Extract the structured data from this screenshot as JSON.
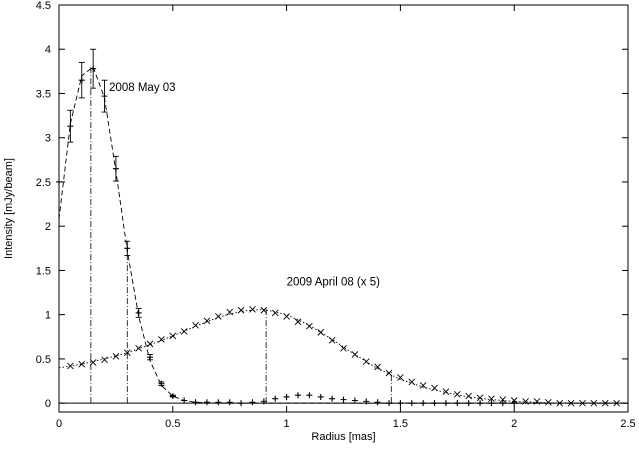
{
  "chart_data": {
    "type": "scatter",
    "xlabel": "Radius [mas]",
    "ylabel": "Intensity [mJy/beam]",
    "xlim": [
      0,
      2.5
    ],
    "ylim": [
      -0.1,
      4.5
    ],
    "xticks": [
      "0",
      "0.5",
      "1",
      "1.5",
      "2",
      "2.5"
    ],
    "yticks": [
      "0",
      "0.5",
      "1",
      "1.5",
      "2",
      "2.5",
      "3",
      "3.5",
      "4",
      "4.5"
    ],
    "grid": false,
    "annotations": [
      {
        "text": "2008 May 03",
        "x": 0.22,
        "y": 3.53
      },
      {
        "text": "2009 April 08 (x 5)",
        "x": 1.0,
        "y": 1.33
      }
    ],
    "series": [
      {
        "marker": "plus-errorbar",
        "x": [
          0.0,
          0.05,
          0.1,
          0.15,
          0.2,
          0.25,
          0.3,
          0.35,
          0.4,
          0.45,
          0.5,
          0.55,
          0.6,
          0.65,
          0.7,
          0.75,
          0.8,
          0.85,
          0.9,
          0.95,
          1.0,
          1.05,
          1.1,
          1.15,
          1.2,
          1.25,
          1.3,
          1.35,
          1.4,
          1.45,
          1.5,
          1.55,
          1.6,
          1.65,
          1.7,
          1.75,
          1.8,
          1.85,
          1.9,
          1.95,
          2.0
        ],
        "y": [
          2.5,
          3.13,
          3.65,
          3.78,
          3.47,
          2.65,
          1.75,
          1.02,
          0.52,
          0.22,
          0.08,
          0.03,
          0.01,
          0.01,
          0.01,
          0.01,
          0.0,
          0.01,
          0.02,
          0.05,
          0.07,
          0.09,
          0.09,
          0.07,
          0.05,
          0.04,
          0.03,
          0.02,
          0.01,
          0.0,
          0.0,
          0.0,
          0.0,
          0.0,
          0.0,
          0.0,
          0.0,
          0.0,
          0.0,
          0.0,
          0.0
        ],
        "err": [
          0.0,
          0.18,
          0.2,
          0.22,
          0.18,
          0.14,
          0.08,
          0.05,
          0.03,
          0.02,
          0.01,
          0.0,
          0.0,
          0.0,
          0.0,
          0.0,
          0.0,
          0.0,
          0.0,
          0.0,
          0.0,
          0.0,
          0.0,
          0.0,
          0.0,
          0.0,
          0.0,
          0.0,
          0.0,
          0.0,
          0.0,
          0.0,
          0.0,
          0.0,
          0.0,
          0.0,
          0.0,
          0.0,
          0.0,
          0.0,
          0.0
        ]
      },
      {
        "marker": "cross",
        "x": [
          0.05,
          0.1,
          0.15,
          0.2,
          0.25,
          0.3,
          0.35,
          0.4,
          0.45,
          0.5,
          0.55,
          0.6,
          0.65,
          0.7,
          0.75,
          0.8,
          0.85,
          0.9,
          0.95,
          1.0,
          1.05,
          1.1,
          1.15,
          1.2,
          1.25,
          1.3,
          1.35,
          1.4,
          1.45,
          1.5,
          1.55,
          1.6,
          1.65,
          1.7,
          1.75,
          1.8,
          1.85,
          1.9,
          1.95,
          2.0,
          2.05,
          2.1,
          2.15,
          2.2,
          2.25,
          2.3,
          2.35,
          2.4,
          2.45
        ],
        "y": [
          0.42,
          0.44,
          0.46,
          0.49,
          0.53,
          0.57,
          0.62,
          0.67,
          0.72,
          0.76,
          0.81,
          0.88,
          0.93,
          0.98,
          1.03,
          1.05,
          1.06,
          1.05,
          1.02,
          0.98,
          0.92,
          0.87,
          0.8,
          0.71,
          0.62,
          0.55,
          0.47,
          0.41,
          0.34,
          0.29,
          0.24,
          0.2,
          0.17,
          0.13,
          0.1,
          0.08,
          0.06,
          0.05,
          0.04,
          0.03,
          0.02,
          0.02,
          0.01,
          0.0,
          0.0,
          0.0,
          0.0,
          0.0,
          0.0
        ]
      }
    ],
    "fit_curves": [
      {
        "style": "dashed",
        "x": [
          0.0,
          0.05,
          0.1,
          0.15,
          0.2,
          0.25,
          0.3,
          0.35,
          0.4,
          0.45,
          0.5,
          0.55,
          0.6,
          0.7,
          0.8,
          1.0,
          1.2,
          1.5,
          2.0,
          2.5
        ],
        "y": [
          2.08,
          3.16,
          3.7,
          3.8,
          3.45,
          2.62,
          1.72,
          0.98,
          0.48,
          0.2,
          0.08,
          0.03,
          0.01,
          0.0,
          0.0,
          0.0,
          0.0,
          0.0,
          0.0,
          0.0
        ]
      },
      {
        "style": "dotted",
        "x": [
          0.0,
          0.1,
          0.2,
          0.3,
          0.4,
          0.5,
          0.6,
          0.7,
          0.8,
          0.9,
          1.0,
          1.1,
          1.2,
          1.3,
          1.4,
          1.5,
          1.6,
          1.7,
          1.8,
          1.9,
          2.0,
          2.1,
          2.2,
          2.3,
          2.4,
          2.5
        ],
        "y": [
          0.4,
          0.44,
          0.5,
          0.57,
          0.66,
          0.76,
          0.87,
          0.97,
          1.04,
          1.06,
          1.0,
          0.88,
          0.72,
          0.55,
          0.39,
          0.27,
          0.18,
          0.12,
          0.07,
          0.04,
          0.02,
          0.01,
          0.0,
          0.0,
          0.0,
          0.0
        ]
      }
    ],
    "vertical_markers": [
      {
        "x": 0.14,
        "y_top": 3.8
      },
      {
        "x": 0.3,
        "y_top": 1.72
      },
      {
        "x": 0.91,
        "y_top": 1.06
      },
      {
        "x": 1.46,
        "y_top": 0.36
      }
    ],
    "zero_line": true
  }
}
